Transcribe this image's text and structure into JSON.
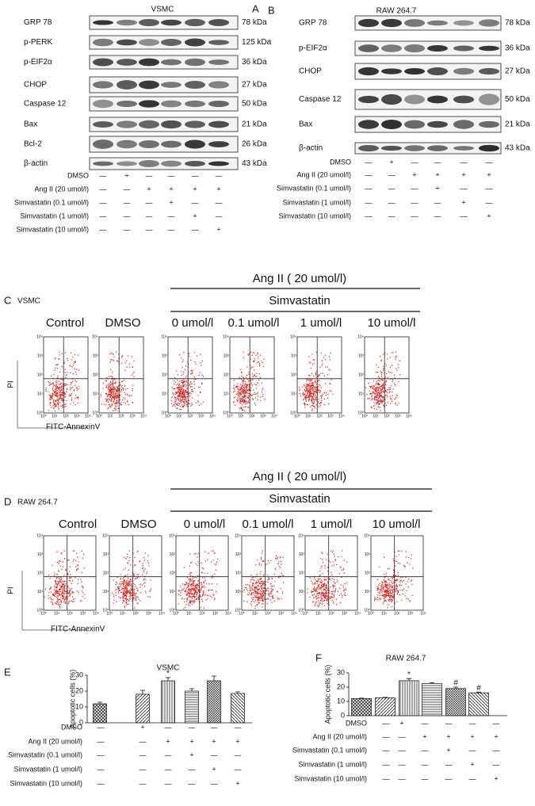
{
  "blots": [
    {
      "letter": "A",
      "title": "VSMC",
      "rows": [
        {
          "label": "GRP 78",
          "kda": "78 kDa"
        },
        {
          "label": "p-PERK",
          "kda": "125 kDa"
        },
        {
          "label": "p-EIF2α",
          "kda": "36 kDa"
        },
        {
          "label": "CHOP",
          "kda": "27 kDa"
        },
        {
          "label": "Caspase 12",
          "kda": "50 kDa"
        },
        {
          "label": "Bax",
          "kda": "21 kDa"
        },
        {
          "label": "Bcl-2",
          "kda": "26 kDa"
        },
        {
          "label": "β-actin",
          "kda": "43 kDa"
        }
      ],
      "treatments": [
        {
          "label": "DMSO",
          "signs": [
            "—",
            "+",
            "—",
            "—",
            "—",
            "—"
          ]
        },
        {
          "label": "Ang II (20 umol/l)",
          "signs": [
            "—",
            "—",
            "+",
            "+",
            "+",
            "+"
          ]
        },
        {
          "label": "Simvastatin (0.1 umol/l)",
          "signs": [
            "—",
            "—",
            "—",
            "+",
            "—",
            "—"
          ]
        },
        {
          "label": "Simvastatin (1 umol/l)",
          "signs": [
            "—",
            "—",
            "—",
            "—",
            "+",
            "—"
          ]
        },
        {
          "label": "Simvastatin (10 umol/l)",
          "signs": [
            "—",
            "—",
            "—",
            "—",
            "—",
            "+"
          ]
        }
      ]
    },
    {
      "letter": "B",
      "title": "RAW 264.7",
      "rows": [
        {
          "label": "GRP 78",
          "kda": "78 kDa"
        },
        {
          "label": "p-EIF2α",
          "kda": "36 kDa"
        },
        {
          "label": "CHOP",
          "kda": "27 kDa"
        },
        {
          "label": "Caspase 12",
          "kda": "50 kDa"
        },
        {
          "label": "Bax",
          "kda": "21 kDa"
        },
        {
          "label": "β-actin",
          "kda": "43 kDa"
        }
      ],
      "treatments": [
        {
          "label": "DMSO",
          "signs": [
            "—",
            "+",
            "—",
            "—",
            "—",
            "—"
          ]
        },
        {
          "label": "Ang II (20 umol/l)",
          "signs": [
            "—",
            "—",
            "+",
            "+",
            "+",
            "+"
          ]
        },
        {
          "label": "Simvastatin (0.1 umol/l)",
          "signs": [
            "—",
            "—",
            "—",
            "+",
            "—",
            "—"
          ]
        },
        {
          "label": "Simvastatin (1 umol/l)",
          "signs": [
            "—",
            "—",
            "—",
            "—",
            "+",
            "—"
          ]
        },
        {
          "label": "Simvastatin (10 umol/l)",
          "signs": [
            "—",
            "—",
            "—",
            "—",
            "—",
            "+"
          ]
        }
      ]
    }
  ],
  "flow": [
    {
      "letter": "C",
      "title": "VSMC",
      "header": "Ang II ( 20 umol/l)",
      "subheader": "Simvastatin",
      "samples": [
        "Control",
        "DMSO",
        "0 umol/l",
        "0.1 umol/l",
        "1 umol/l",
        "10 umol/l"
      ],
      "ylabel": "PI",
      "xlabel": "FITC-AnnexinV",
      "tick_labels": [
        "10⁰",
        "10¹",
        "10²",
        "10³",
        "10⁴"
      ]
    },
    {
      "letter": "D",
      "title": "RAW 264.7",
      "header": "Ang II ( 20 umol/l)",
      "subheader": "Simvastatin",
      "samples": [
        "Control",
        "DMSO",
        "0 umol/l",
        "0.1 umol/l",
        "1 umol/l",
        "10 umol/l"
      ],
      "ylabel": "PI",
      "xlabel": "FITC-AnnexinV",
      "tick_labels": [
        "10⁰",
        "10¹",
        "10²",
        "10³",
        "10⁴"
      ]
    }
  ],
  "chart_data": [
    {
      "type": "bar",
      "letter": "E",
      "title": "VSMC",
      "ylabel": "Apoptotic cells (%)",
      "ylim": [
        0,
        30
      ],
      "yticks": [
        0,
        10,
        20,
        30
      ],
      "values": [
        12,
        18,
        26.5,
        20,
        26.5,
        18.5
      ],
      "errors": [
        1,
        2.5,
        2,
        1.5,
        3,
        1
      ],
      "annotations": [
        null,
        null,
        "*",
        null,
        null,
        null
      ],
      "treatments": [
        {
          "label": "DMSO",
          "signs": [
            "—",
            "+",
            "—",
            "—",
            "—",
            "—"
          ]
        },
        {
          "label": "Ang II (20 umol/l)",
          "signs": [
            "—",
            "—",
            "+",
            "+",
            "+",
            "+"
          ]
        },
        {
          "label": "Simvastatin (0.1 umol/l)",
          "signs": [
            "—",
            "—",
            "—",
            "+",
            "—",
            "—"
          ]
        },
        {
          "label": "Simvastatin (1 umol/l)",
          "signs": [
            "—",
            "—",
            "—",
            "—",
            "+",
            "—"
          ]
        },
        {
          "label": "Simvastatin (10 umol/l)",
          "signs": [
            "—",
            "—",
            "—",
            "—",
            "—",
            "+"
          ]
        }
      ]
    },
    {
      "type": "bar",
      "letter": "F",
      "title": "RAW 264.7",
      "ylabel": "Apoptotic cells (%)",
      "ylim": [
        0,
        30
      ],
      "yticks": [
        0,
        10,
        20,
        30
      ],
      "values": [
        12,
        12.5,
        24.5,
        22.5,
        19,
        16
      ],
      "errors": [
        0.3,
        0.3,
        1.5,
        0.7,
        1,
        0.5
      ],
      "annotations": [
        null,
        null,
        "*",
        null,
        "#",
        "#"
      ],
      "treatments": [
        {
          "label": "DMSO",
          "signs": [
            "—",
            "+",
            "—",
            "—",
            "—",
            "—"
          ]
        },
        {
          "label": "Ang II (20 umol/l)",
          "signs": [
            "—",
            "—",
            "+",
            "+",
            "+",
            "+"
          ]
        },
        {
          "label": "Simvastatin (0.1 umol/l)",
          "signs": [
            "—",
            "—",
            "—",
            "+",
            "—",
            "—"
          ]
        },
        {
          "label": "Simvastatin (1 umol/l)",
          "signs": [
            "—",
            "—",
            "—",
            "—",
            "+",
            "—"
          ]
        },
        {
          "label": "Simvastatin (10 umol/l)",
          "signs": [
            "—",
            "—",
            "—",
            "—",
            "—",
            "+"
          ]
        }
      ]
    }
  ]
}
